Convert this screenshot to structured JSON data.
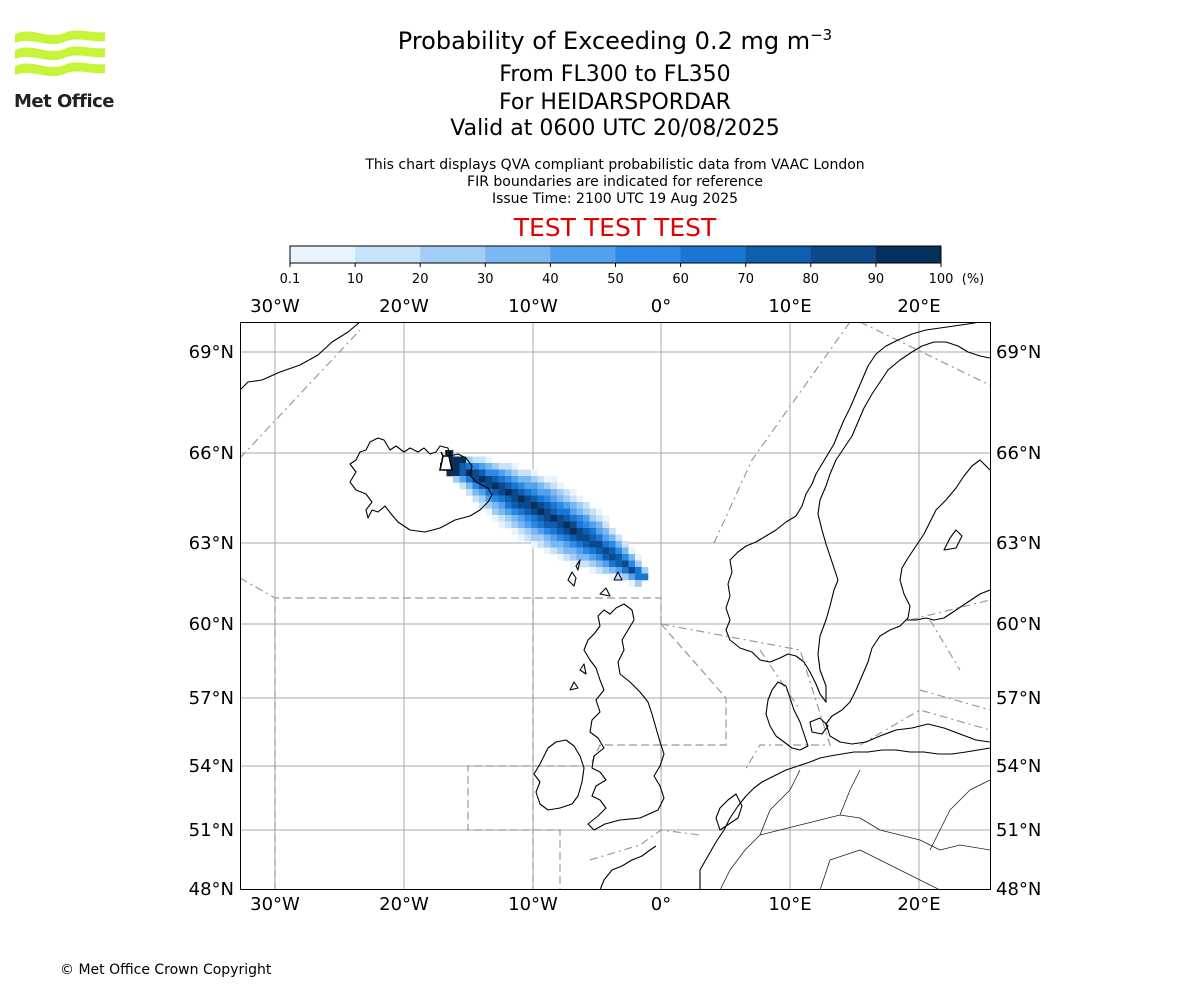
{
  "logo": {
    "text": "Met Office"
  },
  "header": {
    "title": "Probability of Exceeding 0.2 mg m",
    "title_sup": "−3",
    "level": "From FL300 to FL350",
    "volcano": "For HEIDARSPORDAR",
    "valid": "Valid at 0600 UTC 20/08/2025",
    "info_1": "This chart displays QVA compliant probabilistic data from VAAC London",
    "info_2": "FIR boundaries are indicated for reference",
    "info_3": "Issue Time: 2100 UTC 19 Aug 2025",
    "test_banner": "TEST TEST TEST",
    "test_color": "#e00000"
  },
  "colorbar": {
    "ticks": [
      "0.1",
      "10",
      "20",
      "30",
      "40",
      "50",
      "60",
      "70",
      "80",
      "90",
      "100"
    ],
    "unit": "(%)",
    "colors": [
      "#eaf4fd",
      "#c8e2f9",
      "#a3cdf5",
      "#7bb7f1",
      "#53a1ec",
      "#2c8ae6",
      "#1976d2",
      "#0f5eb0",
      "#0a4a8a",
      "#062f5c"
    ]
  },
  "map": {
    "lon_labels": [
      "30°W",
      "20°W",
      "10°W",
      "0°",
      "10°E",
      "20°E"
    ],
    "lat_labels": [
      "69°N",
      "66°N",
      "63°N",
      "60°N",
      "57°N",
      "54°N",
      "51°N",
      "48°N"
    ],
    "source_icon": "volcano-icon",
    "coast_color": "#000000",
    "grid_color": "#aaaaaa",
    "fir_color": "#999999"
  },
  "footer": {
    "copyright": "© Met Office Crown Copyright"
  }
}
